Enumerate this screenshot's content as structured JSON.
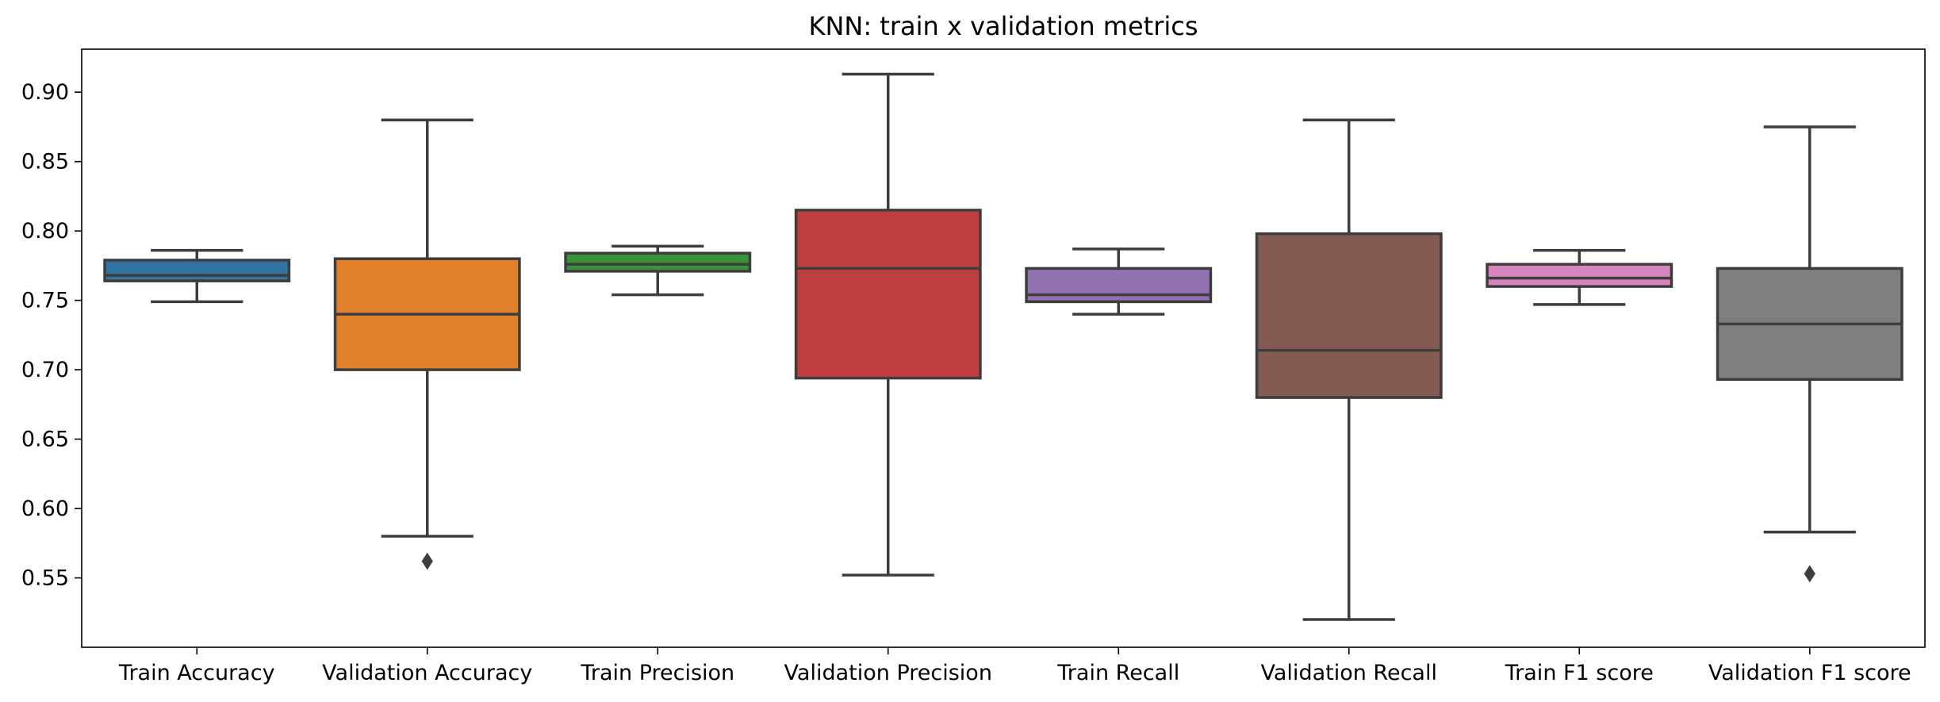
{
  "chart_data": {
    "type": "box",
    "title": "KNN: train x validation metrics",
    "xlabel": "",
    "ylabel": "",
    "ylim": [
      0.5,
      0.931
    ],
    "yticks": [
      "0.55",
      "0.60",
      "0.65",
      "0.70",
      "0.75",
      "0.80",
      "0.85",
      "0.90"
    ],
    "grid": false,
    "categories": [
      "Train Accuracy",
      "Validation Accuracy",
      "Train Precision",
      "Validation Precision",
      "Train Recall",
      "Validation Recall",
      "Train F1 score",
      "Validation F1 score"
    ],
    "boxes": [
      {
        "category": "Train Accuracy",
        "color": "#3274a1",
        "whisker_low": 0.749,
        "q1": 0.764,
        "median": 0.768,
        "q3": 0.779,
        "whisker_high": 0.786,
        "outliers": []
      },
      {
        "category": "Validation Accuracy",
        "color": "#e1812c",
        "whisker_low": 0.58,
        "q1": 0.7,
        "median": 0.74,
        "q3": 0.78,
        "whisker_high": 0.88,
        "outliers": [
          0.562
        ]
      },
      {
        "category": "Train Precision",
        "color": "#3a923a",
        "whisker_low": 0.754,
        "q1": 0.771,
        "median": 0.776,
        "q3": 0.784,
        "whisker_high": 0.789,
        "outliers": []
      },
      {
        "category": "Validation Precision",
        "color": "#c03d3e",
        "whisker_low": 0.552,
        "q1": 0.694,
        "median": 0.773,
        "q3": 0.815,
        "whisker_high": 0.913,
        "outliers": []
      },
      {
        "category": "Train Recall",
        "color": "#9372b2",
        "whisker_low": 0.74,
        "q1": 0.749,
        "median": 0.754,
        "q3": 0.773,
        "whisker_high": 0.787,
        "outliers": []
      },
      {
        "category": "Validation Recall",
        "color": "#845b53",
        "whisker_low": 0.52,
        "q1": 0.68,
        "median": 0.714,
        "q3": 0.798,
        "whisker_high": 0.88,
        "outliers": []
      },
      {
        "category": "Train F1 score",
        "color": "#d684bd",
        "whisker_low": 0.747,
        "q1": 0.76,
        "median": 0.766,
        "q3": 0.776,
        "whisker_high": 0.786,
        "outliers": []
      },
      {
        "category": "Validation F1 score",
        "color": "#7f7f7f",
        "whisker_low": 0.583,
        "q1": 0.693,
        "median": 0.733,
        "q3": 0.773,
        "whisker_high": 0.875,
        "outliers": [
          0.553
        ]
      }
    ],
    "line_color": "#3d3d3d"
  }
}
